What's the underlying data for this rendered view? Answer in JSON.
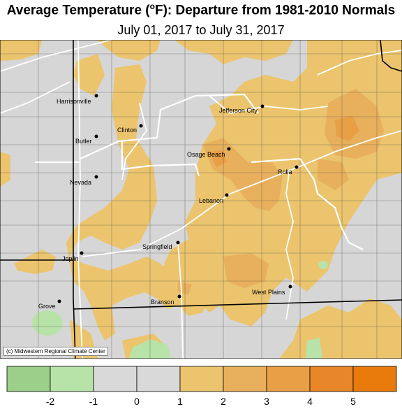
{
  "title": {
    "main": "Average Temperature (",
    "sup": "o",
    "rest": "F): Departure from 1981-2010 Normals"
  },
  "subtitle": "July 01, 2017 to July 31, 2017",
  "credit": "(c) Midwestern Regional Climate Center",
  "cities": [
    {
      "name": "Harrisonville"
    },
    {
      "name": "Clinton"
    },
    {
      "name": "Butler"
    },
    {
      "name": "Nevada"
    },
    {
      "name": "Jefferson City"
    },
    {
      "name": "Osage Beach"
    },
    {
      "name": "Rolla"
    },
    {
      "name": "Lebanon"
    },
    {
      "name": "Springfield"
    },
    {
      "name": "Joplin"
    },
    {
      "name": "Branson"
    },
    {
      "name": "West Plains"
    },
    {
      "name": "Grove"
    }
  ],
  "legend": {
    "colors": [
      "#9ccf8a",
      "#b8e3a8",
      "#d9d9d9",
      "#d9d9d9",
      "#ebc46d",
      "#e8b05c",
      "#e89f45",
      "#e8862a",
      "#e87b0c"
    ],
    "ticks": [
      "-2",
      "-1",
      "0",
      "1",
      "2",
      "3",
      "4",
      "5"
    ]
  }
}
